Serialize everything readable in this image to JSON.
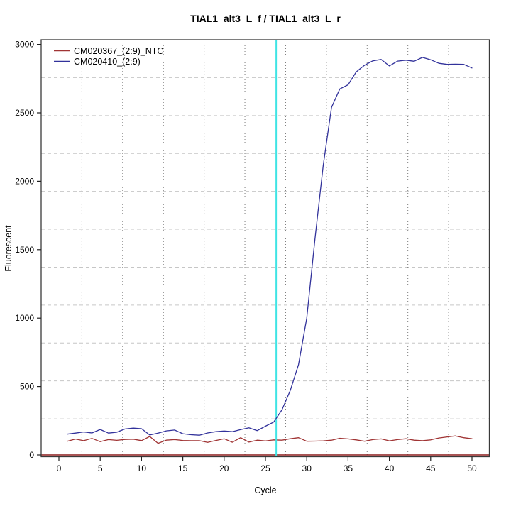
{
  "chart_data": {
    "type": "line",
    "title": "TIAL1_alt3_L_f / TIAL1_alt3_L_r",
    "xlabel": "Cycle",
    "ylabel": "Fluorescent",
    "xlim": [
      0,
      50
    ],
    "ylim": [
      0,
      3000
    ],
    "x_ticks": [
      0,
      5,
      10,
      15,
      20,
      25,
      30,
      35,
      40,
      45,
      50
    ],
    "y_ticks": [
      0,
      500,
      1000,
      1500,
      2000,
      2500,
      3000
    ],
    "grid": {
      "divisions": 11,
      "horizontal_style": "dashed",
      "vertical_style": "dotted",
      "horizontal_color": "#C6C6C6",
      "vertical_color": "#7A7A7A"
    },
    "legend_position": "top-left",
    "x": [
      1,
      2,
      3,
      4,
      5,
      6,
      7,
      8,
      9,
      10,
      11,
      12,
      13,
      14,
      15,
      16,
      17,
      18,
      19,
      20,
      21,
      22,
      23,
      24,
      25,
      26,
      27,
      28,
      29,
      30,
      31,
      32,
      33,
      34,
      35,
      36,
      37,
      38,
      39,
      40,
      41,
      42,
      43,
      44,
      45,
      46,
      47,
      48,
      49,
      50
    ],
    "series": [
      {
        "name": "CM020367_(2:9)_NTC",
        "color": "#A03434",
        "values": [
          100,
          116,
          104,
          121,
          97,
          112,
          107,
          113,
          115,
          105,
          135,
          85,
          108,
          112,
          106,
          104,
          104,
          92,
          106,
          118,
          93,
          126,
          94,
          108,
          102,
          110,
          108,
          118,
          126,
          100,
          101,
          103,
          108,
          122,
          117,
          110,
          100,
          112,
          117,
          103,
          112,
          118,
          108,
          104,
          110,
          124,
          132,
          139,
          126,
          118
        ]
      },
      {
        "name": "CM020410_(2:9)",
        "color": "#32329B",
        "values": [
          152,
          160,
          168,
          161,
          186,
          160,
          166,
          190,
          196,
          192,
          146,
          160,
          176,
          182,
          155,
          148,
          144,
          161,
          170,
          175,
          170,
          185,
          198,
          178,
          210,
          240,
          330,
          470,
          660,
          1000,
          1580,
          2120,
          2540,
          2675,
          2705,
          2800,
          2848,
          2880,
          2890,
          2843,
          2878,
          2885,
          2877,
          2905,
          2888,
          2862,
          2854,
          2856,
          2854,
          2828
        ]
      }
    ],
    "annotations": {
      "threshold_line": {
        "axis": "y",
        "value": 0,
        "color": "#8B1C1C"
      },
      "ct_line": {
        "axis": "x",
        "value": 26.3,
        "color": "#3FE4E4"
      }
    }
  }
}
